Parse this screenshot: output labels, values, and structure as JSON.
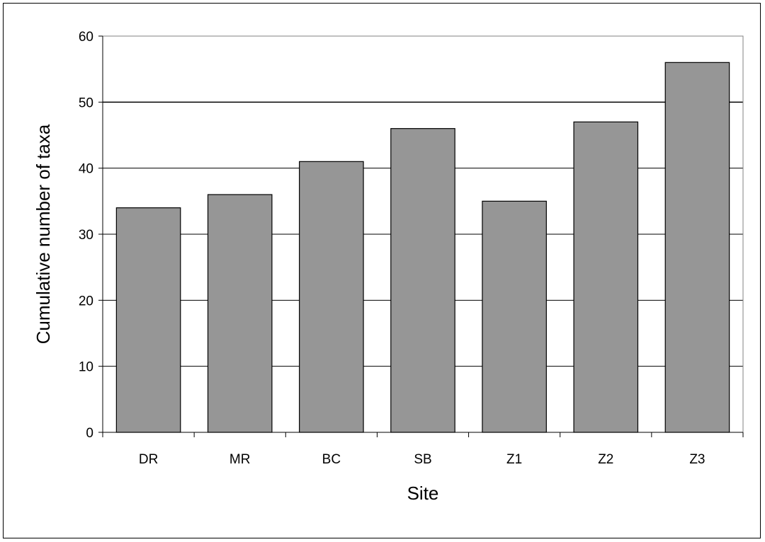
{
  "chart_data": {
    "type": "bar",
    "title": "",
    "xlabel": "Site",
    "ylabel": "Cumulative number of taxa",
    "categories": [
      "DR",
      "MR",
      "BC",
      "SB",
      "Z1",
      "Z2",
      "Z3"
    ],
    "values": [
      34,
      36,
      41,
      46,
      35,
      47,
      56
    ],
    "ylim": [
      0,
      60
    ],
    "yticks": [
      0,
      10,
      20,
      30,
      40,
      50,
      60
    ],
    "grid": "horizontal",
    "legend": "none",
    "colors": {
      "bar_fill": "#969696",
      "bar_stroke": "#000000",
      "gridline": "#000000",
      "plot_border": "#808080",
      "background": "#ffffff"
    }
  }
}
